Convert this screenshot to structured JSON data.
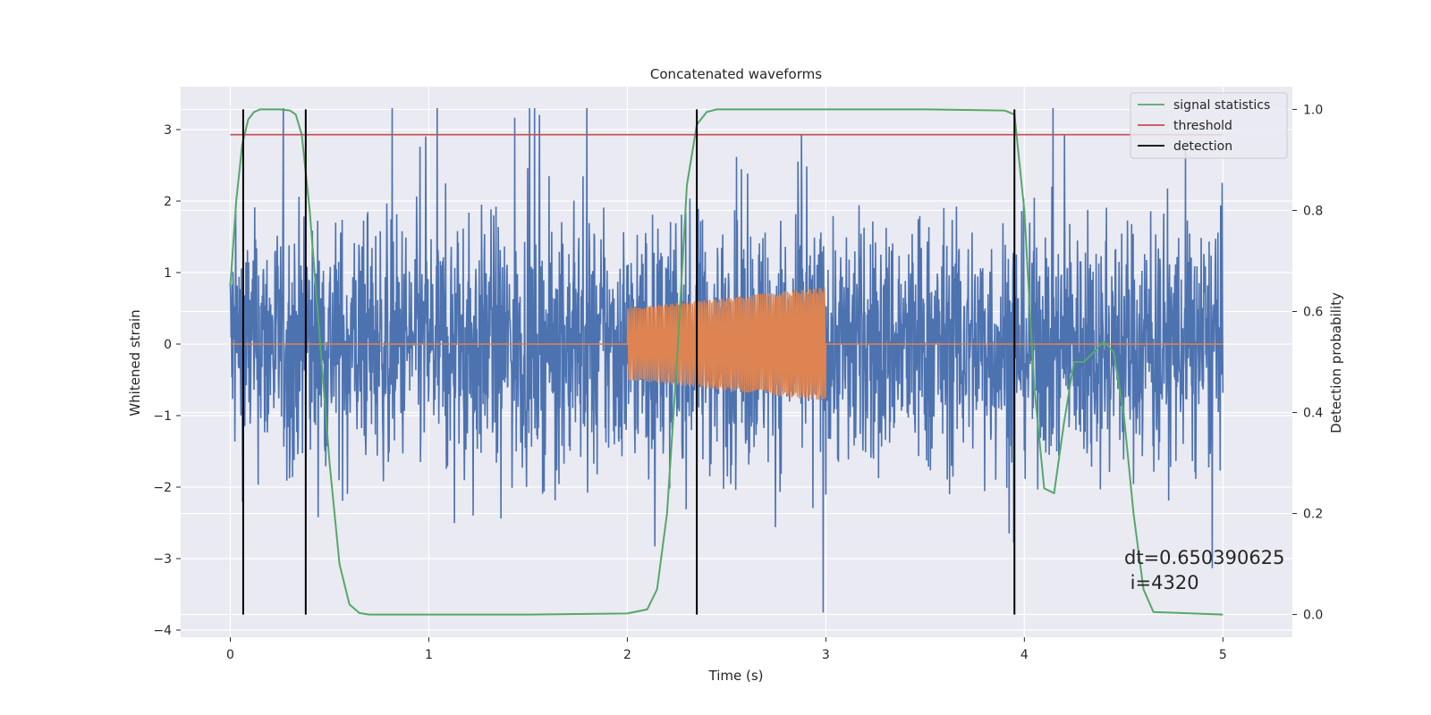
{
  "chart_data": {
    "type": "line",
    "title": "Concatenated waveforms",
    "xlabel": "Time (s)",
    "ylabel": "Whitened strain",
    "y2label": "Detection probability",
    "xlim": [
      -0.25,
      5.35
    ],
    "ylim": [
      -4.1,
      3.6
    ],
    "y2lim": [
      -0.045,
      1.045
    ],
    "x_ticks": [
      0,
      1,
      2,
      3,
      4,
      5
    ],
    "x_tick_labels": [
      "0",
      "1",
      "2",
      "3",
      "4",
      "5"
    ],
    "y_ticks": [
      -4,
      -3,
      -2,
      -1,
      0,
      1,
      2,
      3
    ],
    "y_tick_labels": [
      "−4",
      "−3",
      "−2",
      "−1",
      "0",
      "1",
      "2",
      "3"
    ],
    "y2_ticks": [
      0,
      0.2,
      0.4,
      0.6,
      0.8,
      1.0
    ],
    "y2_tick_labels": [
      "0.0",
      "0.2",
      "0.4",
      "0.6",
      "0.8",
      "1.0"
    ],
    "grid": true,
    "legend_position": "top-right",
    "noise_series": {
      "color": "#4c72b0",
      "x_range": [
        0,
        5
      ],
      "approx_amplitude": 3.3
    },
    "waveform_series": {
      "color": "#dd8452",
      "x_range": [
        2.0,
        3.0
      ],
      "amplitude_range": [
        0.5,
        0.8
      ],
      "baseline": 0
    },
    "series": [
      {
        "name": "signal statistics",
        "color": "#55a868",
        "axis": "right",
        "x": [
          0,
          0.03,
          0.06,
          0.09,
          0.12,
          0.15,
          0.2,
          0.25,
          0.3,
          0.33,
          0.36,
          0.4,
          0.45,
          0.5,
          0.55,
          0.6,
          0.65,
          0.7,
          1.0,
          1.5,
          2.0,
          2.1,
          2.15,
          2.2,
          2.25,
          2.3,
          2.35,
          2.4,
          2.45,
          2.5,
          3.0,
          3.5,
          3.9,
          3.95,
          4.0,
          4.05,
          4.1,
          4.15,
          4.2,
          4.25,
          4.3,
          4.35,
          4.4,
          4.45,
          4.5,
          4.55,
          4.6,
          4.65,
          5.0
        ],
        "values": [
          0.65,
          0.82,
          0.93,
          0.98,
          0.995,
          1.0,
          1.0,
          1.0,
          0.998,
          0.99,
          0.95,
          0.8,
          0.55,
          0.3,
          0.1,
          0.02,
          0.003,
          0.0,
          0.0,
          0.0,
          0.002,
          0.01,
          0.05,
          0.2,
          0.5,
          0.85,
          0.97,
          0.995,
          1.0,
          1.0,
          1.0,
          1.0,
          0.998,
          0.99,
          0.8,
          0.45,
          0.25,
          0.24,
          0.38,
          0.5,
          0.5,
          0.52,
          0.54,
          0.52,
          0.4,
          0.2,
          0.05,
          0.005,
          0.0
        ]
      },
      {
        "name": "threshold",
        "color": "#c44e52",
        "axis": "right",
        "x": [
          0,
          5
        ],
        "values": [
          0.95,
          0.95
        ]
      },
      {
        "name": "detection",
        "color": "#000000",
        "axis": "right",
        "x": [
          0.065,
          0.38,
          2.35,
          3.95
        ],
        "values": [
          1.0,
          1.0,
          1.0,
          1.0
        ]
      }
    ],
    "annotation": {
      "line1": "dt=0.650390625",
      "line2": " i=4320"
    }
  }
}
